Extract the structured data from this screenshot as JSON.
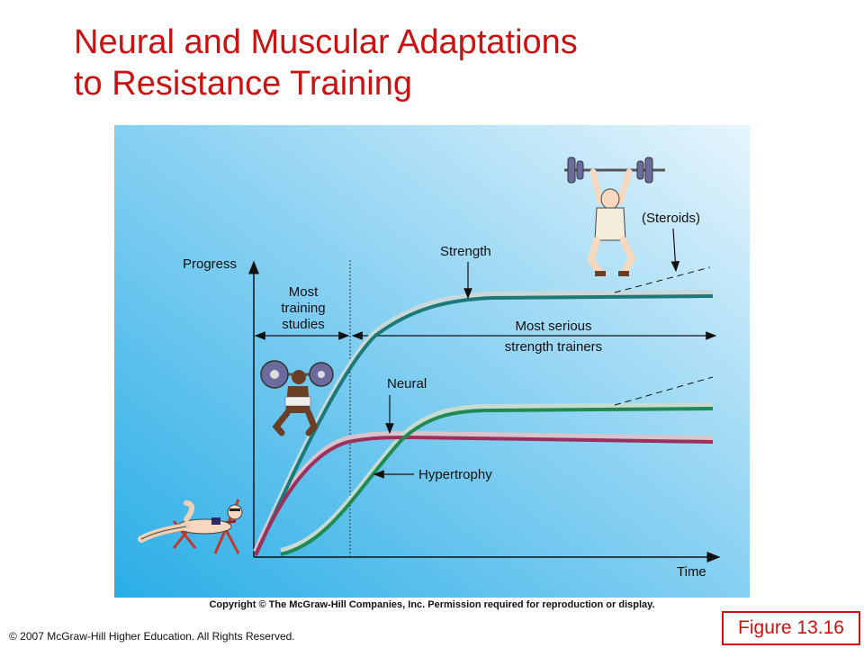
{
  "title": {
    "line1": "Neural and Muscular Adaptations",
    "line2": "to Resistance Training"
  },
  "diagram": {
    "y_axis_label": "Progress",
    "x_axis_label": "Time",
    "curves": {
      "strength": "Strength",
      "neural": "Neural",
      "hypertrophy": "Hypertrophy",
      "steroids": "(Steroids)"
    },
    "phases": {
      "early_line1": "Most",
      "early_line2": "training",
      "early_line3": "studies",
      "late_line1": "Most serious",
      "late_line2": "strength trainers"
    },
    "colors": {
      "background_left": "#29b3e8",
      "background_right": "#e4f4fc",
      "strength": "#1a7a7a",
      "neural": "#9b2f5e",
      "hypertrophy": "#1f8a55"
    },
    "illustrations": [
      "reclining-person",
      "squatting-lifter",
      "overhead-lifter"
    ]
  },
  "copyright": "Copyright © The McGraw-Hill Companies, Inc. Permission required for reproduction or display.",
  "rights": "© 2007 McGraw-Hill Higher Education. All Rights Reserved.",
  "figure_number": "Figure 13.16"
}
